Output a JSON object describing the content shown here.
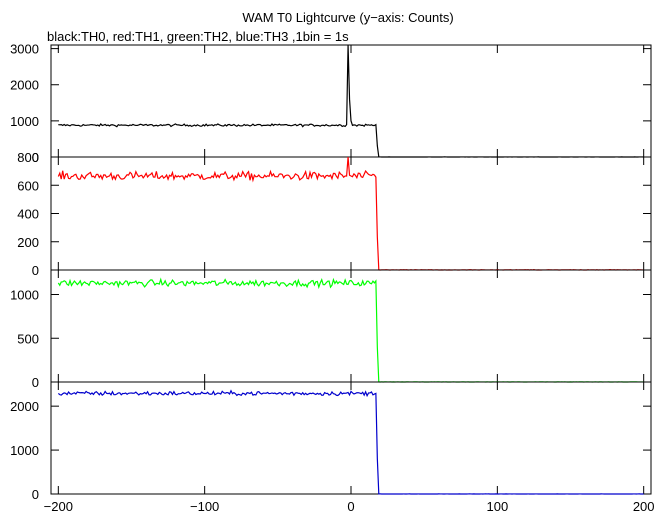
{
  "header": {
    "title": "WAM T0 Lightcurve (y−axis: Counts)",
    "subtitle": "black:TH0, red:TH1, green:TH2, blue:TH3 ,1bin = 1s"
  },
  "chart_data": {
    "type": "line",
    "title": "WAM T0 Lightcurve (y−axis: Counts)",
    "subtitle": "black:TH0, red:TH1, green:TH2, blue:TH3 ,1bin = 1s",
    "xlabel": "",
    "ylabel": "",
    "bin_seconds": 1,
    "xlim": [
      -205,
      205
    ],
    "x_ticks": [
      -200,
      -100,
      0,
      100,
      200
    ],
    "x_tick_labels": [
      "−200",
      "−100",
      "0",
      "100",
      "200"
    ],
    "drop_time": 18,
    "grid": false,
    "legend": "none (colors described in subtitle)",
    "panels": [
      {
        "name": "TH0",
        "color": "#000000",
        "ylim": [
          0,
          3100
        ],
        "y_ticks": [
          0,
          1000,
          2000,
          3000
        ],
        "y_tick_labels": [
          "0",
          "1000",
          "2000",
          "3000"
        ],
        "pre_level": 880,
        "noise": 30,
        "post_level": 0,
        "spikes": [
          {
            "t": -2,
            "value": 3100
          },
          {
            "t": -1,
            "value": 1600
          },
          {
            "t": 0,
            "value": 1000
          }
        ]
      },
      {
        "name": "TH1",
        "color": "#ff0000",
        "ylim": [
          0,
          800
        ],
        "y_ticks": [
          0,
          200,
          400,
          600,
          800
        ],
        "y_tick_labels": [
          "0",
          "200",
          "400",
          "600",
          "800"
        ],
        "pre_level": 665,
        "noise": 28,
        "post_level": 0,
        "spikes": [
          {
            "t": -2,
            "value": 800
          }
        ]
      },
      {
        "name": "TH2",
        "color": "#00ff00",
        "ylim": [
          0,
          1280
        ],
        "y_ticks": [
          0,
          500,
          1000
        ],
        "y_tick_labels": [
          "0",
          "500",
          "1000"
        ],
        "pre_level": 1130,
        "noise": 35,
        "post_level": 0,
        "spikes": []
      },
      {
        "name": "TH3",
        "color": "#0000cc",
        "ylim": [
          0,
          2550
        ],
        "y_ticks": [
          0,
          1000,
          2000
        ],
        "y_tick_labels": [
          "0",
          "1000",
          "2000"
        ],
        "pre_level": 2290,
        "noise": 45,
        "post_level": 0,
        "spikes": []
      }
    ]
  }
}
